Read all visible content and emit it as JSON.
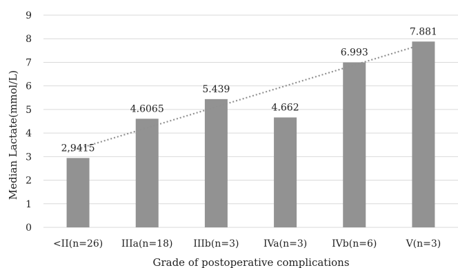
{
  "chart_data": {
    "type": "bar",
    "categories": [
      "<II(n=26)",
      "IIIa(n=18)",
      "IIIb(n=3)",
      "IVa(n=3)",
      "IVb(n=6)",
      "V(n=3)"
    ],
    "values": [
      2.9415,
      4.6065,
      5.439,
      4.662,
      6.993,
      7.881
    ],
    "data_labels": [
      "2.9415",
      "4.6065",
      "5.439",
      "4.662",
      "6.993",
      "7.881"
    ],
    "title": "",
    "xlabel": "Grade of postoperative complications",
    "ylabel": "Median Lactate(mmol/L)",
    "ylim": [
      0,
      9
    ],
    "yticks": [
      "0",
      "1",
      "2",
      "3",
      "4",
      "5",
      "6",
      "7",
      "8",
      "9"
    ],
    "trendline": "linear",
    "grid": true,
    "legend": "none",
    "colors": {
      "bar": "#929292",
      "trendline": "#909090",
      "grid": "#d9d9d9",
      "text": "#222222"
    }
  }
}
